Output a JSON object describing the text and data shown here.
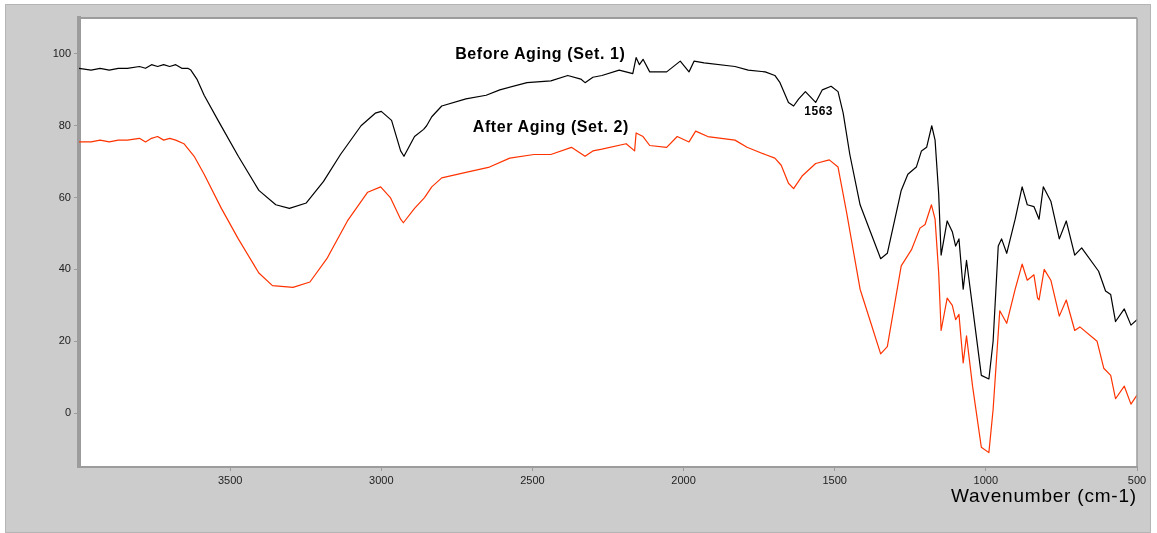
{
  "chart_data": {
    "type": "line",
    "xlabel": "Wavenumber (cm-1)",
    "xlim": [
      4000,
      500
    ],
    "xticks": [
      3500,
      3000,
      2500,
      2000,
      1500,
      1000,
      500
    ],
    "ylim": [
      -15,
      110
    ],
    "yticks": [
      0,
      20,
      40,
      60,
      80,
      100
    ],
    "annotations": [
      {
        "text": "1563",
        "x": 1563,
        "y": 86.5
      }
    ],
    "series": [
      {
        "name": "Before Aging (Set. 1)",
        "color": "#000000",
        "x": [
          4000,
          3960,
          3930,
          3900,
          3870,
          3840,
          3800,
          3780,
          3760,
          3740,
          3720,
          3700,
          3680,
          3660,
          3640,
          3630,
          3610,
          3586,
          3540,
          3473,
          3405,
          3349,
          3304,
          3248,
          3191,
          3135,
          3067,
          3020,
          3000,
          2966,
          2936,
          2925,
          2890,
          2860,
          2850,
          2833,
          2800,
          2720,
          2653,
          2608,
          2518,
          2439,
          2383,
          2340,
          2326,
          2300,
          2270,
          2213,
          2168,
          2157,
          2146,
          2134,
          2112,
          2056,
          2011,
          1982,
          1965,
          1932,
          1830,
          1786,
          1730,
          1698,
          1681,
          1653,
          1636,
          1619,
          1597,
          1563,
          1541,
          1512,
          1489,
          1472,
          1450,
          1416,
          1382,
          1348,
          1326,
          1280,
          1258,
          1230,
          1213,
          1196,
          1179,
          1168,
          1156,
          1148,
          1128,
          1111,
          1100,
          1089,
          1075,
          1064,
          1044,
          1015,
          990,
          976,
          959,
          948,
          931,
          903,
          880,
          863,
          841,
          824,
          810,
          785,
          757,
          734,
          706,
          683,
          627,
          604,
          587,
          571,
          542,
          520,
          500
        ],
        "values": [
          96,
          95.5,
          96,
          95.5,
          96,
          96,
          96.5,
          96,
          97,
          96.5,
          97,
          96.5,
          97,
          96,
          96,
          95.5,
          93,
          88.5,
          81.5,
          71.5,
          62,
          58,
          57,
          58.5,
          64.5,
          72,
          80,
          83.5,
          84,
          81.5,
          73,
          71.5,
          77,
          79,
          80,
          82.5,
          85.5,
          87.5,
          88.5,
          90,
          92,
          92.5,
          94,
          93,
          92,
          93.5,
          94,
          95.5,
          94.5,
          99,
          97,
          98.5,
          95,
          95,
          98,
          95,
          98,
          97.5,
          96.5,
          95.5,
          95,
          94,
          92,
          86.5,
          85.5,
          87.5,
          89.5,
          86.5,
          90,
          91,
          89.5,
          83.5,
          72,
          58,
          50.5,
          43,
          44.5,
          62,
          66.5,
          68.5,
          73,
          74,
          80,
          76,
          61,
          44,
          53.5,
          50.5,
          46.5,
          48.5,
          34.5,
          42.5,
          29.5,
          10.5,
          9.5,
          20,
          46.5,
          48.5,
          44.5,
          54,
          63,
          58,
          57.5,
          54,
          63,
          59,
          48.5,
          53.5,
          44,
          46,
          39.5,
          34,
          33,
          25.5,
          29,
          24.5,
          26
        ]
      },
      {
        "name": "After Aging (Set. 2)",
        "color": "#ff3300",
        "x": [
          4000,
          3960,
          3930,
          3900,
          3870,
          3840,
          3800,
          3780,
          3760,
          3740,
          3720,
          3700,
          3680,
          3653,
          3619,
          3586,
          3529,
          3473,
          3405,
          3360,
          3292,
          3236,
          3180,
          3112,
          3045,
          3002,
          2970,
          2936,
          2927,
          2890,
          2857,
          2833,
          2800,
          2720,
          2642,
          2575,
          2495,
          2439,
          2371,
          2326,
          2300,
          2270,
          2190,
          2162,
          2157,
          2134,
          2112,
          2056,
          2021,
          1982,
          1960,
          1920,
          1830,
          1790,
          1730,
          1698,
          1677,
          1653,
          1636,
          1608,
          1563,
          1518,
          1489,
          1461,
          1416,
          1382,
          1348,
          1326,
          1280,
          1246,
          1218,
          1201,
          1180,
          1168,
          1156,
          1148,
          1128,
          1111,
          1100,
          1089,
          1075,
          1064,
          1044,
          1015,
          990,
          976,
          954,
          931,
          903,
          880,
          863,
          841,
          829,
          824,
          807,
          785,
          757,
          734,
          706,
          689,
          632,
          610,
          587,
          571,
          542,
          520,
          500
        ],
        "values": [
          75.5,
          75.5,
          76,
          75.5,
          76,
          76,
          76.5,
          75.5,
          76.5,
          77,
          76,
          76.5,
          76,
          75,
          71.5,
          66.5,
          57,
          48.5,
          39,
          35.5,
          35,
          36.5,
          43,
          53.5,
          61.5,
          63,
          60,
          54,
          53,
          57,
          60,
          63,
          65.5,
          67,
          68.5,
          71,
          72,
          72,
          74,
          71.5,
          73,
          73.5,
          75,
          73,
          78,
          77,
          74.5,
          74,
          77,
          75.5,
          78.5,
          77,
          76,
          74,
          72,
          71,
          69,
          64,
          62.5,
          66,
          69.5,
          70.5,
          68.5,
          56,
          34.5,
          25.5,
          16.5,
          18.5,
          41,
          45.5,
          51.5,
          52.5,
          58,
          54,
          39,
          23,
          32,
          30,
          26,
          27.5,
          14,
          21.5,
          7.5,
          -9.5,
          -11,
          1,
          28.5,
          25,
          34.5,
          41.5,
          37,
          38.5,
          32,
          31.5,
          40,
          37,
          27,
          31.5,
          23,
          24,
          20,
          12.5,
          10.5,
          4,
          7.5,
          2.5,
          5
        ]
      }
    ]
  }
}
